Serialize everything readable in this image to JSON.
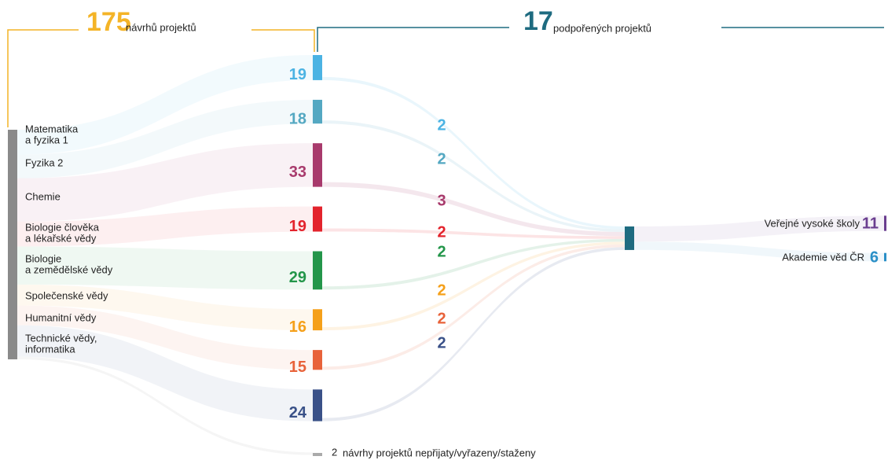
{
  "header": {
    "total": {
      "value": 175,
      "label": "návrhů projektů",
      "color": "#f4b427"
    },
    "supported": {
      "value": 17,
      "label": "podpořených projektů",
      "color": "#1e6b80"
    }
  },
  "fields": [
    [
      "Matematika",
      "a fyzika 1"
    ],
    [
      "Fyzika 2"
    ],
    [
      "Chemie"
    ],
    [
      "Biologie člověka",
      "a lékařské vědy"
    ],
    [
      "Biologie",
      "a zemědělské vědy"
    ],
    [
      "Společenské vědy"
    ],
    [
      "Humanitní vědy"
    ],
    [
      "Technické vědy,",
      "informatika"
    ]
  ],
  "proposals": [
    {
      "value": 19,
      "color": "#4bb3e3"
    },
    {
      "value": 18,
      "color": "#54a8c2"
    },
    {
      "value": 33,
      "color": "#a83a6c"
    },
    {
      "value": 19,
      "color": "#e3232c"
    },
    {
      "value": 29,
      "color": "#23964a"
    },
    {
      "value": 16,
      "color": "#f5a01a"
    },
    {
      "value": 15,
      "color": "#e8623a"
    },
    {
      "value": 24,
      "color": "#3a5188"
    }
  ],
  "supported_flows": [
    {
      "value": 2,
      "color": "#4bb3e3"
    },
    {
      "value": 2,
      "color": "#54a8c2"
    },
    {
      "value": 3,
      "color": "#a83a6c"
    },
    {
      "value": 2,
      "color": "#e3232c"
    },
    {
      "value": 2,
      "color": "#23964a"
    },
    {
      "value": 2,
      "color": "#f5a01a"
    },
    {
      "value": 2,
      "color": "#e8623a"
    },
    {
      "value": 2,
      "color": "#3a5188"
    }
  ],
  "rejected": {
    "value": 2,
    "label": "návrhy projektů nepřijaty/vyřazeny/staženy",
    "color": "#999999"
  },
  "recipients": [
    {
      "label": "Veřejné vysoké školy",
      "value": 11,
      "color": "#6a3d8f"
    },
    {
      "label": "Akademie věd ČR",
      "value": 6,
      "color": "#2a8fc7"
    }
  ]
}
